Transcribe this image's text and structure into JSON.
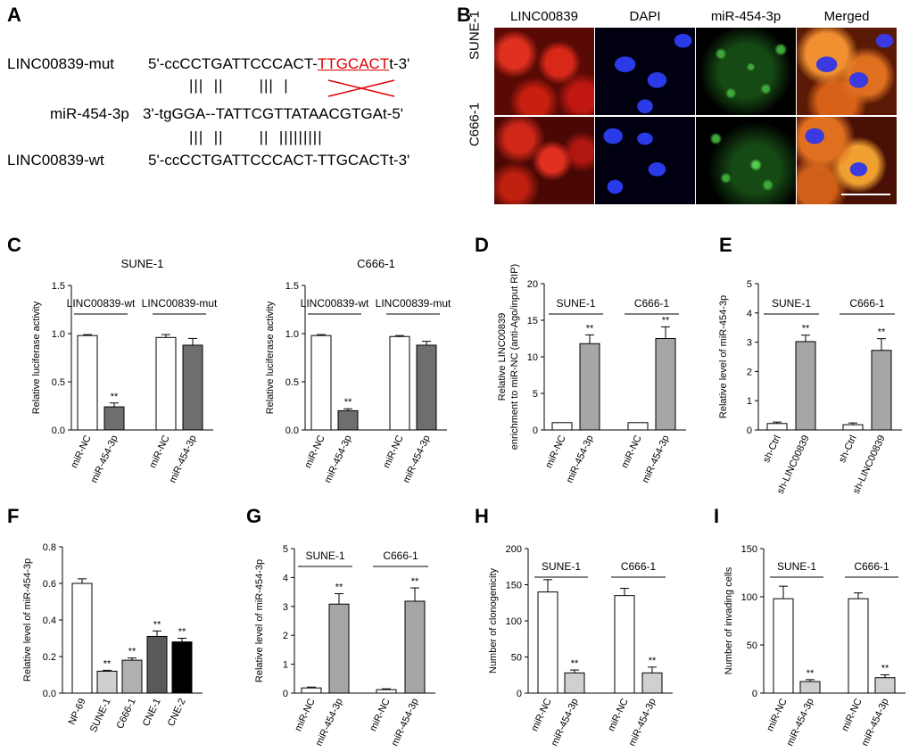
{
  "panels": {
    "A": "A",
    "B": "B",
    "C": "C",
    "D": "D",
    "E": "E",
    "F": "F",
    "G": "G",
    "H": "H",
    "I": "I"
  },
  "panel_a": {
    "mut_label": "LINC00839-mut",
    "mut_seq_prefix": "5'-ccCCTGATTCCCACT-",
    "mut_seq_red": "TTGCACT",
    "mut_seq_suffix": "t-3'",
    "mir_label": "miR-454-3p",
    "mir_seq": "3'-tgGGA--TATTCGTTATAACGTGAt-5'",
    "wt_label": "LINC00839-wt",
    "wt_seq": "5'-ccCCTGATTCCCACT-TTGCACTt-3'",
    "pairs_top": "|||  ||       |||  |",
    "pairs_bottom": "|||  ||       ||  |||||||||"
  },
  "panel_b": {
    "columns": [
      "LINC00839",
      "DAPI",
      "miR-454-3p",
      "Merged"
    ],
    "rows": [
      "SUNE-1",
      "C666-1"
    ]
  },
  "colors": {
    "white_bar": "#ffffff",
    "dark_gray": "#6e6e6e",
    "mid_gray": "#a6a6a6",
    "light_gray": "#d0d0d0",
    "f_sune": "#cfcfcf",
    "f_c666": "#b0b0b0",
    "f_cne1": "#5a5a5a",
    "f_cne2": "#000000",
    "red_annot": "#e00000"
  },
  "chart_data": [
    {
      "panel": "C-left",
      "type": "bar",
      "title": "SUNE-1",
      "ylabel": "Relative luciferase activity",
      "ylim": [
        0,
        1.5
      ],
      "yticks": [
        "0.0",
        "0.5",
        "1.0",
        "1.5"
      ],
      "categories": [
        "miR-NC",
        "miR-454-3p",
        "miR-NC",
        "miR-454-3p"
      ],
      "values": [
        0.98,
        0.24,
        0.96,
        0.88
      ],
      "errors": [
        0.01,
        0.04,
        0.03,
        0.07
      ],
      "fills": [
        "white",
        "dark",
        "white",
        "dark"
      ],
      "significance": [
        "",
        "**",
        "",
        ""
      ],
      "groups": [
        "LINC00839-wt",
        "LINC00839-mut"
      ]
    },
    {
      "panel": "C-right",
      "type": "bar",
      "title": "C666-1",
      "ylabel": "Relative luciferase activity",
      "ylim": [
        0,
        1.5
      ],
      "yticks": [
        "0.0",
        "0.5",
        "1.0",
        "1.5"
      ],
      "categories": [
        "miR-NC",
        "miR-454-3p",
        "miR-NC",
        "miR-454-3p"
      ],
      "values": [
        0.98,
        0.2,
        0.97,
        0.88
      ],
      "errors": [
        0.01,
        0.02,
        0.01,
        0.04
      ],
      "fills": [
        "white",
        "dark",
        "white",
        "dark"
      ],
      "significance": [
        "",
        "**",
        "",
        ""
      ],
      "groups": [
        "LINC00839-wt",
        "LINC00839-mut"
      ]
    },
    {
      "panel": "D",
      "type": "bar",
      "title": "",
      "ylabel": "Relative LINC00839\nenrichment to miR-NC (anti-Ago/input RIP)",
      "ylim": [
        0,
        20
      ],
      "yticks": [
        "0",
        "5",
        "10",
        "15",
        "20"
      ],
      "categories": [
        "miR-NC",
        "miR-454-3p",
        "miR-NC",
        "miR-454-3p"
      ],
      "values": [
        1.0,
        11.8,
        1.0,
        12.5
      ],
      "errors": [
        0,
        1.2,
        0,
        1.6
      ],
      "fills": [
        "white",
        "mid",
        "white",
        "mid"
      ],
      "significance": [
        "",
        "**",
        "",
        "**"
      ],
      "groups": [
        "SUNE-1",
        "C666-1"
      ]
    },
    {
      "panel": "E",
      "type": "bar",
      "title": "",
      "ylabel": "Relative level of miR-454-3p",
      "ylim": [
        0,
        5
      ],
      "yticks": [
        "0",
        "1",
        "2",
        "3",
        "4",
        "5"
      ],
      "categories": [
        "sh-Ctrl",
        "sh-LINC00839",
        "sh-Ctrl",
        "sh-LINC00839"
      ],
      "values": [
        0.22,
        3.02,
        0.18,
        2.72
      ],
      "errors": [
        0.05,
        0.22,
        0.06,
        0.4
      ],
      "fills": [
        "white",
        "mid",
        "white",
        "mid"
      ],
      "significance": [
        "",
        "**",
        "",
        "**"
      ],
      "groups": [
        "SUNE-1",
        "C666-1"
      ]
    },
    {
      "panel": "F",
      "type": "bar",
      "title": "",
      "ylabel": "Relative level of miR-454-3p",
      "ylim": [
        0,
        0.8
      ],
      "yticks": [
        "0.0",
        "0.2",
        "0.4",
        "0.6",
        "0.8"
      ],
      "categories": [
        "NP-69",
        "SUNE-1",
        "C666-1",
        "CNE-1",
        "CNE-2"
      ],
      "values": [
        0.6,
        0.12,
        0.18,
        0.31,
        0.28
      ],
      "errors": [
        0.025,
        0.005,
        0.012,
        0.03,
        0.02
      ],
      "fills": [
        "white",
        "f_sune",
        "f_c666",
        "f_cne1",
        "f_cne2"
      ],
      "significance": [
        "",
        "**",
        "**",
        "**",
        "**"
      ],
      "groups": []
    },
    {
      "panel": "G",
      "type": "bar",
      "title": "",
      "ylabel": "Relative level of miR-454-3p",
      "ylim": [
        0,
        5
      ],
      "yticks": [
        "0",
        "1",
        "2",
        "3",
        "4",
        "5"
      ],
      "categories": [
        "miR-NC",
        "miR-454-3p",
        "miR-NC",
        "miR-454-3p"
      ],
      "values": [
        0.18,
        3.08,
        0.12,
        3.18
      ],
      "errors": [
        0.03,
        0.36,
        0.03,
        0.46
      ],
      "fills": [
        "white",
        "mid",
        "white",
        "mid"
      ],
      "significance": [
        "",
        "**",
        "",
        "**"
      ],
      "groups": [
        "SUNE-1",
        "C666-1"
      ]
    },
    {
      "panel": "H",
      "type": "bar",
      "title": "",
      "ylabel": "Number of clonogenicity",
      "ylim": [
        0,
        200
      ],
      "yticks": [
        "0",
        "50",
        "100",
        "150",
        "200"
      ],
      "categories": [
        "miR-NC",
        "miR-454-3p",
        "miR-NC",
        "miR-454-3p"
      ],
      "values": [
        140,
        28,
        135,
        28
      ],
      "errors": [
        17,
        4,
        10,
        8
      ],
      "fills": [
        "white",
        "light",
        "white",
        "light"
      ],
      "significance": [
        "",
        "**",
        "",
        "**"
      ],
      "groups": [
        "SUNE-1",
        "C666-1"
      ]
    },
    {
      "panel": "I",
      "type": "bar",
      "title": "",
      "ylabel": "Number of invading cells",
      "ylim": [
        0,
        150
      ],
      "yticks": [
        "0",
        "50",
        "100",
        "150"
      ],
      "categories": [
        "miR-NC",
        "miR-454-3p",
        "miR-NC",
        "miR-454-3p"
      ],
      "values": [
        98,
        12,
        98,
        16
      ],
      "errors": [
        13,
        2,
        6,
        3
      ],
      "fills": [
        "white",
        "light",
        "white",
        "light"
      ],
      "significance": [
        "",
        "**",
        "",
        "**"
      ],
      "groups": [
        "SUNE-1",
        "C666-1"
      ]
    }
  ]
}
